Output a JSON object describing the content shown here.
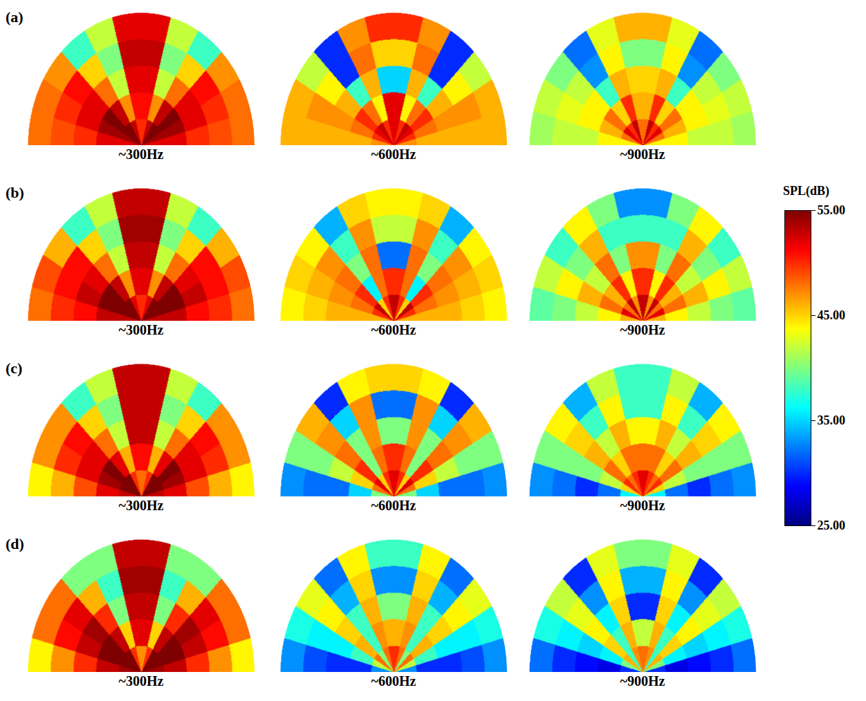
{
  "chart_data": {
    "type": "heatmap",
    "rows": [
      {
        "label": "(a)",
        "maps": [
          {
            "title": "~300Hz",
            "cells": [
              [
                52,
                54,
                55,
                55,
                53,
                50,
                50,
                53,
                55,
                55,
                54,
                52
              ],
              [
                52,
                54,
                55,
                53,
                47,
                51,
                51,
                47,
                53,
                55,
                54,
                52
              ],
              [
                50,
                52,
                52,
                48,
                42,
                52,
                52,
                42,
                48,
                52,
                52,
                50
              ],
              [
                49,
                50,
                51,
                45,
                40,
                53,
                53,
                40,
                45,
                51,
                50,
                49
              ],
              [
                48,
                48,
                47,
                38,
                42,
                52,
                52,
                42,
                38,
                47,
                48,
                48
              ]
            ]
          },
          {
            "title": "~600Hz",
            "cells": [
              [
                47,
                50,
                52,
                53,
                50,
                52,
                52,
                50,
                53,
                52,
                50,
                47
              ],
              [
                46,
                48,
                50,
                48,
                44,
                52,
                52,
                44,
                48,
                50,
                48,
                46
              ],
              [
                46,
                47,
                46,
                38,
                46,
                35,
                35,
                46,
                38,
                46,
                47,
                46
              ],
              [
                46,
                47,
                44,
                30,
                48,
                45,
                45,
                48,
                30,
                44,
                47,
                46
              ],
              [
                46,
                46,
                42,
                30,
                47,
                50,
                50,
                47,
                30,
                42,
                46,
                46
              ]
            ]
          },
          {
            "title": "~900Hz",
            "cells": [
              [
                44,
                48,
                52,
                50,
                53,
                48,
                48,
                53,
                50,
                52,
                48,
                44
              ],
              [
                44,
                46,
                48,
                45,
                50,
                46,
                46,
                50,
                45,
                48,
                46,
                44
              ],
              [
                42,
                44,
                44,
                38,
                46,
                45,
                45,
                46,
                38,
                44,
                44,
                42
              ],
              [
                42,
                43,
                42,
                33,
                44,
                40,
                40,
                44,
                33,
                42,
                43,
                42
              ],
              [
                41,
                42,
                40,
                32,
                43,
                46,
                46,
                43,
                32,
                40,
                42,
                41
              ]
            ]
          }
        ]
      },
      {
        "label": "(b)",
        "maps": [
          {
            "title": "~300Hz",
            "cells": [
              [
                53,
                55,
                55,
                55,
                52,
                50,
                50,
                52,
                55,
                55,
                55,
                53
              ],
              [
                53,
                55,
                55,
                53,
                47,
                52,
                52,
                47,
                53,
                55,
                55,
                53
              ],
              [
                51,
                53,
                52,
                48,
                42,
                53,
                53,
                42,
                48,
                52,
                53,
                51
              ],
              [
                50,
                51,
                51,
                45,
                40,
                54,
                54,
                40,
                45,
                51,
                51,
                50
              ],
              [
                48,
                49,
                46,
                38,
                42,
                53,
                53,
                42,
                38,
                46,
                49,
                48
              ]
            ]
          },
          {
            "title": "~600Hz",
            "cells": [
              [
                46,
                50,
                53,
                45,
                50,
                53,
                53,
                50,
                45,
                53,
                50,
                46
              ],
              [
                46,
                48,
                50,
                36,
                48,
                50,
                50,
                48,
                36,
                50,
                48,
                46
              ],
              [
                46,
                47,
                48,
                40,
                48,
                32,
                32,
                48,
                40,
                48,
                47,
                46
              ],
              [
                45,
                46,
                47,
                38,
                47,
                42,
                42,
                47,
                38,
                47,
                46,
                45
              ],
              [
                44,
                45,
                44,
                34,
                45,
                44,
                44,
                45,
                34,
                44,
                45,
                44
              ]
            ]
          },
          {
            "title": "~900Hz",
            "cells": [
              [
                46,
                52,
                48,
                53,
                47,
                53,
                53,
                47,
                53,
                48,
                52,
                46
              ],
              [
                44,
                48,
                46,
                50,
                44,
                50,
                50,
                44,
                50,
                46,
                48,
                44
              ],
              [
                42,
                46,
                42,
                48,
                40,
                47,
                47,
                40,
                48,
                42,
                46,
                42
              ],
              [
                40,
                44,
                40,
                46,
                38,
                38,
                38,
                38,
                46,
                40,
                44,
                40
              ],
              [
                39,
                42,
                38,
                44,
                40,
                33,
                33,
                40,
                44,
                38,
                42,
                39
              ]
            ]
          }
        ]
      },
      {
        "label": "(c)",
        "maps": [
          {
            "title": "~300Hz",
            "cells": [
              [
                53,
                55,
                55,
                55,
                50,
                48,
                48,
                50,
                55,
                55,
                55,
                53
              ],
              [
                52,
                54,
                55,
                52,
                46,
                51,
                51,
                46,
                52,
                55,
                54,
                52
              ],
              [
                49,
                52,
                52,
                48,
                42,
                53,
                53,
                42,
                48,
                52,
                52,
                49
              ],
              [
                46,
                50,
                51,
                45,
                40,
                53,
                53,
                40,
                45,
                51,
                50,
                46
              ],
              [
                44,
                47,
                47,
                38,
                42,
                53,
                53,
                42,
                38,
                47,
                47,
                44
              ]
            ]
          },
          {
            "title": "~600Hz",
            "cells": [
              [
                40,
                48,
                52,
                45,
                50,
                52,
                52,
                50,
                45,
                52,
                48,
                40
              ],
              [
                35,
                45,
                50,
                40,
                48,
                50,
                50,
                48,
                40,
                50,
                45,
                35
              ],
              [
                32,
                42,
                48,
                40,
                47,
                40,
                40,
                47,
                40,
                48,
                42,
                32
              ],
              [
                32,
                40,
                47,
                35,
                47,
                32,
                32,
                47,
                35,
                47,
                40,
                32
              ],
              [
                33,
                40,
                46,
                30,
                44,
                45,
                45,
                44,
                30,
                46,
                40,
                33
              ]
            ]
          },
          {
            "title": "~900Hz",
            "cells": [
              [
                36,
                45,
                50,
                48,
                50,
                52,
                52,
                50,
                48,
                50,
                45,
                36
              ],
              [
                32,
                42,
                48,
                45,
                48,
                48,
                48,
                48,
                45,
                48,
                42,
                32
              ],
              [
                30,
                40,
                46,
                42,
                46,
                44,
                44,
                46,
                42,
                46,
                40,
                30
              ],
              [
                32,
                40,
                45,
                38,
                44,
                38,
                38,
                44,
                38,
                45,
                40,
                32
              ],
              [
                33,
                40,
                44,
                34,
                42,
                38,
                38,
                42,
                34,
                44,
                40,
                33
              ]
            ]
          }
        ]
      },
      {
        "label": "(d)",
        "maps": [
          {
            "title": "~300Hz",
            "cells": [
              [
                54,
                55,
                55,
                55,
                50,
                47,
                47,
                50,
                55,
                55,
                55,
                54
              ],
              [
                53,
                55,
                55,
                53,
                45,
                52,
                52,
                45,
                53,
                55,
                55,
                53
              ],
              [
                50,
                53,
                54,
                50,
                40,
                53,
                53,
                40,
                50,
                54,
                53,
                50
              ],
              [
                47,
                51,
                52,
                46,
                38,
                54,
                54,
                38,
                46,
                52,
                51,
                47
              ],
              [
                44,
                48,
                48,
                40,
                40,
                53,
                53,
                40,
                40,
                48,
                48,
                44
              ]
            ]
          },
          {
            "title": "~600Hz",
            "cells": [
              [
                33,
                42,
                48,
                40,
                48,
                50,
                50,
                48,
                40,
                48,
                42,
                33
              ],
              [
                30,
                38,
                46,
                38,
                47,
                46,
                46,
                47,
                38,
                46,
                38,
                30
              ],
              [
                30,
                36,
                45,
                38,
                46,
                40,
                40,
                46,
                38,
                45,
                36,
                30
              ],
              [
                31,
                36,
                44,
                34,
                45,
                33,
                33,
                45,
                34,
                44,
                36,
                31
              ],
              [
                33,
                37,
                43,
                32,
                44,
                38,
                38,
                44,
                32,
                43,
                37,
                33
              ]
            ]
          },
          {
            "title": "~900Hz",
            "cells": [
              [
                30,
                40,
                46,
                38,
                47,
                48,
                48,
                47,
                38,
                46,
                40,
                30
              ],
              [
                28,
                36,
                45,
                38,
                46,
                42,
                42,
                46,
                38,
                45,
                36,
                28
              ],
              [
                29,
                35,
                44,
                36,
                45,
                30,
                30,
                45,
                36,
                44,
                35,
                29
              ],
              [
                30,
                36,
                43,
                33,
                44,
                34,
                34,
                44,
                33,
                43,
                36,
                30
              ],
              [
                32,
                37,
                42,
                30,
                43,
                40,
                40,
                43,
                30,
                42,
                37,
                32
              ]
            ]
          }
        ]
      }
    ],
    "colorbar": {
      "title": "SPL(dB)",
      "range": [
        25,
        55
      ],
      "ticks": [
        {
          "value": 55,
          "label": "55.00"
        },
        {
          "value": 45,
          "label": "45.00"
        },
        {
          "value": 35,
          "label": "35.00"
        },
        {
          "value": 25,
          "label": "25.00"
        }
      ],
      "colors": [
        "#00007f",
        "#0000ff",
        "#007fff",
        "#00ffff",
        "#7fff7f",
        "#ffff00",
        "#ff7f00",
        "#ff0000",
        "#7f0000"
      ]
    }
  }
}
